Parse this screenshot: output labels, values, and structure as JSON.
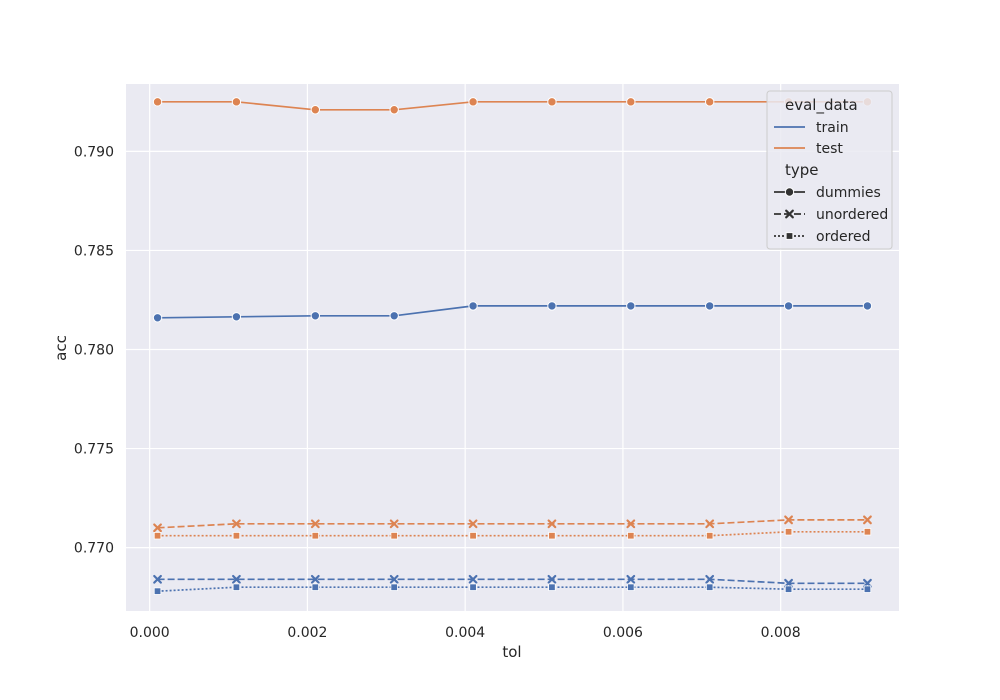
{
  "chart_data": {
    "type": "line",
    "title": "",
    "xlabel": "tol",
    "ylabel": "acc",
    "xlim": [
      -0.0003,
      0.0095
    ],
    "ylim": [
      0.7668,
      0.7934
    ],
    "xticks": [
      0.0,
      0.002,
      0.004,
      0.006,
      0.008
    ],
    "xtick_labels": [
      "0.000",
      "0.002",
      "0.004",
      "0.006",
      "0.008"
    ],
    "yticks": [
      0.77,
      0.775,
      0.78,
      0.785,
      0.79
    ],
    "ytick_labels": [
      "0.770",
      "0.775",
      "0.780",
      "0.785",
      "0.790"
    ],
    "grid": true,
    "legend_placement": "top-right",
    "x": [
      0.0001,
      0.0011,
      0.0021,
      0.0031,
      0.0041,
      0.0051,
      0.0061,
      0.0071,
      0.0081,
      0.0091
    ],
    "series": [
      {
        "name": "train",
        "eval_data": "train",
        "type": "dummies",
        "color": "#4c72b0",
        "dash": "solid",
        "marker": "circle",
        "values": [
          0.7816,
          0.78165,
          0.7817,
          0.7817,
          0.7822,
          0.7822,
          0.7822,
          0.7822,
          0.7822,
          0.7822
        ]
      },
      {
        "name": "train",
        "eval_data": "train",
        "type": "unordered",
        "color": "#4c72b0",
        "dash": "dashed",
        "marker": "x",
        "values": [
          0.7684,
          0.7684,
          0.7684,
          0.7684,
          0.7684,
          0.7684,
          0.7684,
          0.7684,
          0.7682,
          0.7682
        ]
      },
      {
        "name": "train",
        "eval_data": "train",
        "type": "ordered",
        "color": "#4c72b0",
        "dash": "dotted",
        "marker": "square",
        "values": [
          0.7678,
          0.768,
          0.768,
          0.768,
          0.768,
          0.768,
          0.768,
          0.768,
          0.7679,
          0.7679
        ]
      },
      {
        "name": "test",
        "eval_data": "test",
        "type": "dummies",
        "color": "#dd8452",
        "dash": "solid",
        "marker": "circle",
        "values": [
          0.7925,
          0.7925,
          0.7921,
          0.7921,
          0.7925,
          0.7925,
          0.7925,
          0.7925,
          0.7925,
          0.7925
        ]
      },
      {
        "name": "test",
        "eval_data": "test",
        "type": "unordered",
        "color": "#dd8452",
        "dash": "dashed",
        "marker": "x",
        "values": [
          0.771,
          0.7712,
          0.7712,
          0.7712,
          0.7712,
          0.7712,
          0.7712,
          0.7712,
          0.7714,
          0.7714
        ]
      },
      {
        "name": "test",
        "eval_data": "test",
        "type": "ordered",
        "color": "#dd8452",
        "dash": "dotted",
        "marker": "square",
        "values": [
          0.7706,
          0.7706,
          0.7706,
          0.7706,
          0.7706,
          0.7706,
          0.7706,
          0.7706,
          0.7708,
          0.7708
        ]
      }
    ],
    "legend": {
      "hue_title": "eval_data",
      "hue_entries": [
        {
          "label": "train",
          "color": "#4c72b0"
        },
        {
          "label": "test",
          "color": "#dd8452"
        }
      ],
      "style_title": "type",
      "style_entries": [
        {
          "label": "dummies",
          "dash": "solid",
          "marker": "circle"
        },
        {
          "label": "unordered",
          "dash": "dashed",
          "marker": "x"
        },
        {
          "label": "ordered",
          "dash": "dotted",
          "marker": "square"
        }
      ]
    }
  }
}
